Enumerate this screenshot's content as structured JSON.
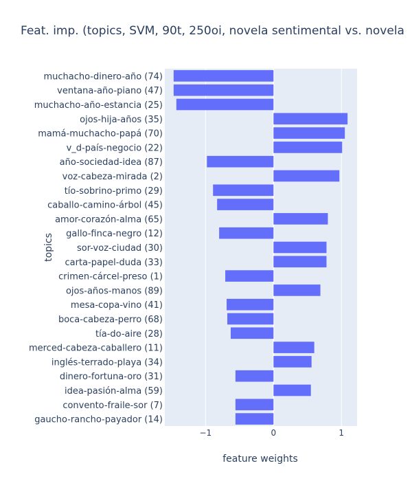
{
  "chart_data": {
    "type": "bar",
    "orientation": "horizontal",
    "title": "Feat. imp. (topics, SVM, 90t, 250oi, novela sentimental vs. novela",
    "xlabel": "feature weights",
    "ylabel": "topics",
    "xlim": [
      -1.6,
      1.23
    ],
    "xticks": [
      -1,
      0,
      1
    ],
    "xtick_labels": [
      "−1",
      "0",
      "1"
    ],
    "grid": true,
    "legend": "none",
    "colors": {
      "bar": "#636efa",
      "plot_bg": "#e5ecf6",
      "grid": "#ffffff",
      "text": "#2a3f5f"
    },
    "categories": [
      "muchacho-dinero-año (74)",
      "ventana-año-piano (47)",
      "muchacho-año-estancia (25)",
      "ojos-hija-años (35)",
      "mamá-muchacho-papá (70)",
      "v_d-país-negocio (22)",
      "año-sociedad-idea (87)",
      "voz-cabeza-mirada (2)",
      "tío-sobrino-primo (29)",
      "caballo-camino-árbol (45)",
      "amor-corazón-alma (65)",
      "gallo-finca-negro (12)",
      "sor-voz-ciudad (30)",
      "carta-papel-duda (33)",
      "crimen-cárcel-preso (1)",
      "ojos-años-manos (89)",
      "mesa-copa-vino (41)",
      "boca-cabeza-perro (68)",
      "tía-do-aire (28)",
      "merced-cabeza-caballero (11)",
      "inglés-terrado-playa (34)",
      "dinero-fortuna-oro (31)",
      "idea-pasión-alma (59)",
      "convento-fraile-sor (7)",
      "gaucho-rancho-payador (14)"
    ],
    "values": [
      -1.47,
      -1.47,
      -1.43,
      1.09,
      1.05,
      1.01,
      -0.98,
      0.97,
      -0.89,
      -0.83,
      0.8,
      -0.8,
      0.78,
      0.78,
      -0.71,
      0.69,
      -0.69,
      -0.68,
      -0.63,
      0.6,
      0.56,
      -0.56,
      0.55,
      -0.56,
      -0.56
    ]
  }
}
